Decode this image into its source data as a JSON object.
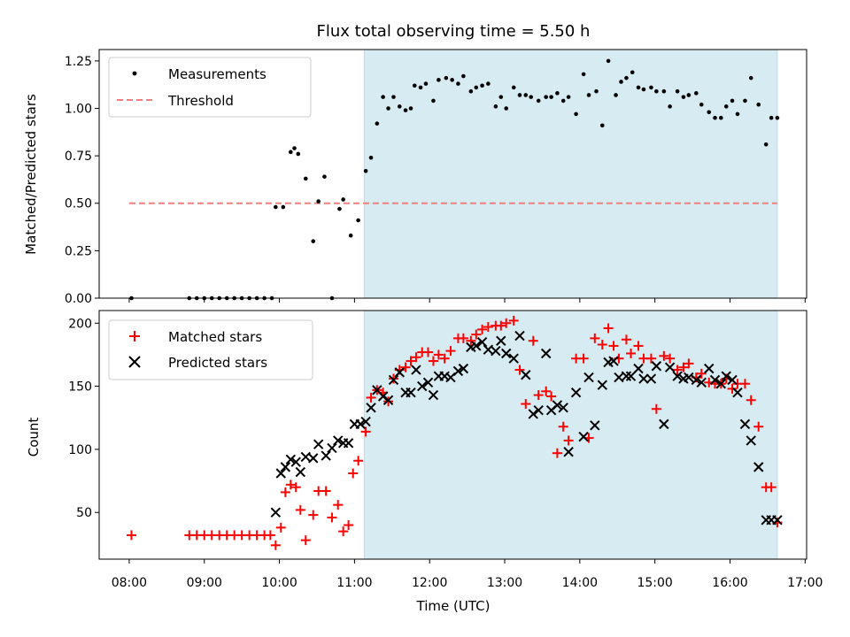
{
  "chart_data": {
    "type": "scatter",
    "title": "Flux total observing time = 5.50 h",
    "xlabel": "Time (UTC)",
    "x_ticks": [
      "08:00",
      "09:00",
      "10:00",
      "11:00",
      "12:00",
      "13:00",
      "14:00",
      "15:00",
      "16:00",
      "17:00"
    ],
    "x_range_hours": [
      7.6,
      17.02
    ],
    "shaded_interval_hours": [
      11.13,
      16.63
    ],
    "panels": [
      {
        "ylabel": "Matched/Predicted stars",
        "ylim": [
          0,
          1.31
        ],
        "y_ticks": [
          "0.00",
          "0.25",
          "0.50",
          "0.75",
          "1.00",
          "1.25"
        ],
        "legend": [
          "Measurements",
          "Threshold"
        ],
        "threshold": {
          "value": 0.5,
          "x_start": 8.0,
          "x_end": 16.63,
          "color": "#f08080"
        },
        "series": [
          {
            "name": "Measurements",
            "marker": "dot",
            "color": "#000000",
            "x": [
              8.03,
              8.8,
              8.9,
              9.0,
              9.1,
              9.2,
              9.3,
              9.4,
              9.5,
              9.6,
              9.7,
              9.8,
              9.9,
              9.95,
              10.05,
              10.15,
              10.2,
              10.25,
              10.35,
              10.45,
              10.52,
              10.6,
              10.7,
              10.8,
              10.85,
              10.95,
              11.05,
              11.15,
              11.22,
              11.3,
              11.38,
              11.45,
              11.52,
              11.6,
              11.68,
              11.75,
              11.8,
              11.88,
              11.95,
              12.05,
              12.12,
              12.22,
              12.3,
              12.38,
              12.45,
              12.55,
              12.62,
              12.7,
              12.78,
              12.88,
              12.95,
              13.02,
              13.12,
              13.2,
              13.28,
              13.35,
              13.45,
              13.55,
              13.62,
              13.7,
              13.78,
              13.85,
              13.95,
              14.05,
              14.12,
              14.22,
              14.3,
              14.38,
              14.48,
              14.55,
              14.62,
              14.7,
              14.78,
              14.85,
              14.95,
              15.02,
              15.12,
              15.2,
              15.3,
              15.38,
              15.45,
              15.55,
              15.62,
              15.72,
              15.8,
              15.88,
              15.95,
              16.03,
              16.1,
              16.2,
              16.28,
              16.38,
              16.48,
              16.55,
              16.63
            ],
            "y": [
              0.0,
              0.0,
              0.0,
              0.0,
              0.0,
              0.0,
              0.0,
              0.0,
              0.0,
              0.0,
              0.0,
              0.0,
              0.0,
              0.48,
              0.48,
              0.77,
              0.79,
              0.76,
              0.63,
              0.3,
              0.51,
              0.64,
              0.0,
              0.47,
              0.52,
              0.33,
              0.41,
              0.67,
              0.74,
              0.92,
              1.06,
              1.0,
              1.06,
              1.01,
              0.99,
              1.0,
              1.12,
              1.11,
              1.13,
              1.04,
              1.15,
              1.16,
              1.15,
              1.13,
              1.17,
              1.09,
              1.11,
              1.12,
              1.13,
              1.01,
              1.06,
              1.0,
              1.11,
              1.07,
              1.07,
              1.06,
              1.04,
              1.06,
              1.06,
              1.08,
              1.04,
              1.06,
              0.97,
              1.18,
              1.07,
              1.09,
              0.91,
              1.25,
              1.07,
              1.14,
              1.16,
              1.19,
              1.11,
              1.1,
              1.11,
              1.09,
              1.09,
              1.01,
              1.09,
              1.06,
              1.07,
              1.08,
              1.02,
              0.98,
              0.95,
              0.95,
              1.01,
              1.04,
              0.97,
              1.04,
              1.16,
              1.02,
              0.81,
              0.95,
              0.95
            ]
          }
        ]
      },
      {
        "ylabel": "Count",
        "ylim": [
          13,
          210
        ],
        "y_ticks": [
          "50",
          "100",
          "150",
          "200"
        ],
        "legend": [
          "Matched stars",
          "Predicted stars"
        ],
        "series": [
          {
            "name": "Matched stars",
            "marker": "plus",
            "color": "#ff0000",
            "x": [
              8.03,
              8.8,
              8.9,
              9.0,
              9.1,
              9.2,
              9.3,
              9.4,
              9.5,
              9.6,
              9.7,
              9.8,
              9.88,
              9.95,
              10.02,
              10.08,
              10.15,
              10.22,
              10.28,
              10.35,
              10.45,
              10.52,
              10.62,
              10.7,
              10.78,
              10.85,
              10.92,
              10.98,
              11.05,
              11.15,
              11.22,
              11.3,
              11.38,
              11.45,
              11.52,
              11.6,
              11.68,
              11.75,
              11.82,
              11.9,
              11.98,
              12.05,
              12.12,
              12.2,
              12.28,
              12.38,
              12.45,
              12.55,
              12.62,
              12.7,
              12.78,
              12.88,
              12.95,
              13.02,
              13.12,
              13.2,
              13.28,
              13.38,
              13.45,
              13.55,
              13.62,
              13.7,
              13.78,
              13.85,
              13.95,
              14.05,
              14.12,
              14.2,
              14.3,
              14.38,
              14.45,
              14.52,
              14.62,
              14.68,
              14.78,
              14.85,
              14.95,
              15.02,
              15.12,
              15.2,
              15.3,
              15.38,
              15.45,
              15.55,
              15.62,
              15.72,
              15.8,
              15.88,
              15.95,
              16.03,
              16.1,
              16.2,
              16.28,
              16.38,
              16.48,
              16.55,
              16.63
            ],
            "y": [
              32,
              32,
              32,
              32,
              32,
              32,
              32,
              32,
              32,
              32,
              32,
              32,
              32,
              24,
              38,
              66,
              72,
              70,
              52,
              28,
              48,
              67,
              67,
              46,
              56,
              35,
              40,
              81,
              91,
              114,
              141,
              147,
              145,
              138,
              156,
              163,
              165,
              170,
              173,
              177,
              177,
              170,
              175,
              172,
              178,
              188,
              188,
              186,
              191,
              195,
              197,
              198,
              198,
              200,
              202,
              163,
              136,
              186,
              143,
              146,
              142,
              97,
              118,
              107,
              172,
              172,
              109,
              188,
              183,
              196,
              182,
              172,
              187,
              176,
              182,
              172,
              172,
              132,
              174,
              172,
              163,
              165,
              168,
              157,
              160,
              153,
              152,
              152,
              156,
              148,
              152,
              152,
              139,
              118,
              70,
              70,
              42
            ]
          },
          {
            "name": "Predicted stars",
            "marker": "x",
            "color": "#000000",
            "x": [
              9.95,
              10.02,
              10.08,
              10.15,
              10.22,
              10.28,
              10.35,
              10.45,
              10.52,
              10.62,
              10.7,
              10.78,
              10.85,
              10.92,
              11.0,
              11.08,
              11.15,
              11.22,
              11.3,
              11.38,
              11.45,
              11.52,
              11.6,
              11.68,
              11.75,
              11.82,
              11.9,
              11.98,
              12.05,
              12.12,
              12.2,
              12.28,
              12.38,
              12.45,
              12.55,
              12.62,
              12.7,
              12.78,
              12.88,
              12.95,
              13.02,
              13.12,
              13.2,
              13.28,
              13.38,
              13.45,
              13.55,
              13.62,
              13.7,
              13.78,
              13.85,
              13.95,
              14.05,
              14.12,
              14.2,
              14.3,
              14.38,
              14.45,
              14.52,
              14.62,
              14.68,
              14.78,
              14.85,
              14.95,
              15.02,
              15.12,
              15.2,
              15.3,
              15.38,
              15.45,
              15.55,
              15.62,
              15.72,
              15.8,
              15.88,
              15.95,
              16.03,
              16.1,
              16.2,
              16.28,
              16.38,
              16.48,
              16.55,
              16.63
            ],
            "y": [
              50,
              81,
              86,
              92,
              90,
              82,
              94,
              93,
              104,
              95,
              101,
              107,
              105,
              105,
              120,
              120,
              122,
              133,
              147,
              142,
              139,
              155,
              161,
              145,
              145,
              163,
              150,
              153,
              143,
              158,
              158,
              157,
              162,
              164,
              181,
              182,
              185,
              179,
              178,
              186,
              176,
              172,
              190,
              159,
              128,
              131,
              176,
              131,
              135,
              133,
              98,
              145,
              110,
              157,
              119,
              151,
              169,
              170,
              157,
              158,
              158,
              164,
              156,
              156,
              166,
              120,
              165,
              158,
              156,
              157,
              155,
              153,
              164,
              155,
              152,
              158,
              155,
              145,
              120,
              107,
              86,
              44,
              44,
              44
            ]
          }
        ]
      }
    ]
  }
}
